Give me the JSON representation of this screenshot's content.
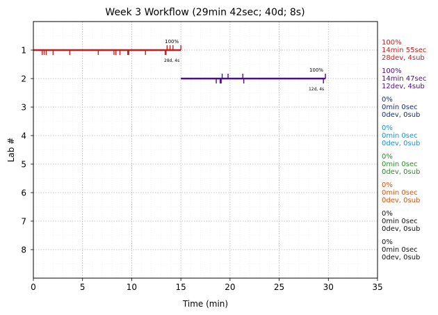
{
  "chart_data": {
    "type": "line",
    "title": "Week 3 Workflow (29min 42sec; 40d; 8s)",
    "xlabel": "Time (min)",
    "ylabel": "Lab #",
    "xlim": [
      0,
      35
    ],
    "ylim": [
      0,
      9
    ],
    "y_inverted": true,
    "grid": true,
    "x_ticks": [
      "0",
      "5",
      "10",
      "15",
      "20",
      "25",
      "30",
      "35"
    ],
    "y_ticks": [
      "1",
      "2",
      "3",
      "4",
      "5",
      "6",
      "7",
      "8"
    ],
    "series": [
      {
        "lab": 1,
        "color": "#c21e1e",
        "start": 0,
        "end": 15.0,
        "dev_ticks": [
          0.9,
          1.1,
          1.3,
          2.0,
          3.7,
          6.6,
          8.2,
          8.4,
          8.8,
          9.6,
          9.7,
          11.4,
          13.4,
          13.5
        ],
        "sub_ticks": [
          13.6,
          13.9,
          14.2,
          15.0
        ],
        "end_label": "100%",
        "end_sub": "28d, 4s",
        "summary": [
          "100%",
          "14min 55sec",
          "28dev, 4sub"
        ]
      },
      {
        "lab": 2,
        "color": "#4b0f85",
        "start": 15.0,
        "end": 29.7,
        "dev_ticks": [
          18.6,
          19.0,
          19.1,
          21.4,
          29.5
        ],
        "sub_ticks": [
          19.2,
          19.8,
          21.3,
          29.7
        ],
        "end_label": "100%",
        "end_sub": "12d, 4s",
        "summary": [
          "100%",
          "14min 47sec",
          "12dev, 4sub"
        ]
      },
      {
        "lab": 3,
        "color": "#1a2d6e",
        "summary": [
          "0%",
          "0min 0sec",
          "0dev, 0sub"
        ]
      },
      {
        "lab": 4,
        "color": "#1f8fd6",
        "summary": [
          "0%",
          "0min 0sec",
          "0dev, 0sub"
        ]
      },
      {
        "lab": 5,
        "color": "#2e8b2e",
        "summary": [
          "0%",
          "0min 0sec",
          "0dev, 0sub"
        ]
      },
      {
        "lab": 6,
        "color": "#d9530f",
        "summary": [
          "0%",
          "0min 0sec",
          "0dev, 0sub"
        ]
      },
      {
        "lab": 7,
        "color": "#111111",
        "summary": [
          "0%",
          "0min 0sec",
          "0dev, 0sub"
        ]
      },
      {
        "lab": 8,
        "color": "#111111",
        "summary": [
          "0%",
          "0min 0sec",
          "0dev, 0sub"
        ]
      }
    ]
  }
}
